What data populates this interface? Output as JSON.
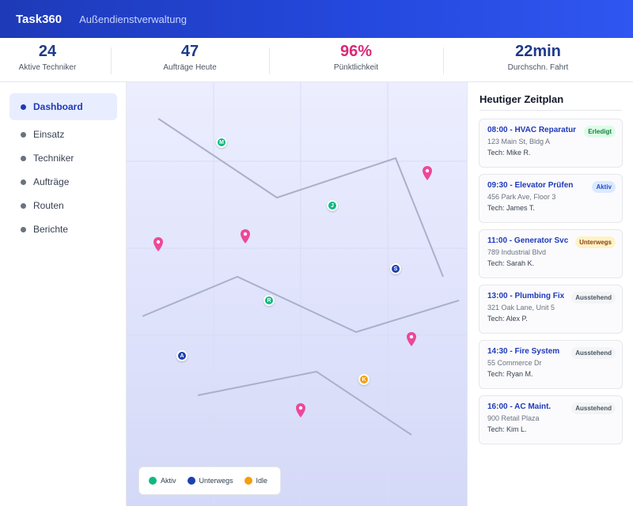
{
  "header": {
    "brand": "Task360",
    "subtitle": "Außendienstverwaltung"
  },
  "stats": [
    {
      "value": "24",
      "label": "Aktive Techniker"
    },
    {
      "value": "47",
      "label": "Aufträge Heute"
    },
    {
      "value": "96%",
      "label": "Pünktlichkeit"
    },
    {
      "value": "22min",
      "label": "Durchschn. Fahrt"
    }
  ],
  "sidebar": {
    "items": [
      {
        "label": "Dashboard",
        "active": true
      },
      {
        "label": "Einsatz"
      },
      {
        "label": "Techniker"
      },
      {
        "label": "Aufträge"
      },
      {
        "label": "Routen"
      },
      {
        "label": "Berichte"
      }
    ]
  },
  "map": {
    "markers": [
      {
        "letter": "M",
        "status": "active"
      },
      {
        "letter": "J",
        "status": "active"
      },
      {
        "letter": "S",
        "status": "transit"
      },
      {
        "letter": "R",
        "status": "active"
      },
      {
        "letter": "A",
        "status": "transit"
      },
      {
        "letter": "K",
        "status": "idle"
      }
    ],
    "legend": [
      {
        "label": "Aktiv",
        "color": "#10b981"
      },
      {
        "label": "Unterwegs",
        "color": "#1e40af"
      },
      {
        "label": "Idle",
        "color": "#f59e0b"
      }
    ],
    "pin_color": "#ec4899"
  },
  "schedule": {
    "title": "Heutiger Zeitplan",
    "jobs": [
      {
        "title": "08:00 - HVAC Reparatur",
        "address": "123 Main St, Bldg A",
        "tech": "Tech: Mike R.",
        "status": "Erledigt"
      },
      {
        "title": "09:30 - Elevator Prüfen",
        "address": "456 Park Ave, Floor 3",
        "tech": "Tech: James T.",
        "status": "Aktiv"
      },
      {
        "title": "11:00 - Generator Svc",
        "address": "789 Industrial Blvd",
        "tech": "Tech: Sarah K.",
        "status": "Unterwegs"
      },
      {
        "title": "13:00 - Plumbing Fix",
        "address": "321 Oak Lane, Unit 5",
        "tech": "Tech: Alex P.",
        "status": "Ausstehend"
      },
      {
        "title": "14:30 - Fire System",
        "address": "55 Commerce Dr",
        "tech": "Tech: Ryan M.",
        "status": "Ausstehend"
      },
      {
        "title": "16:00 - AC Maint.",
        "address": "900 Retail Plaza",
        "tech": "Tech: Kim L.",
        "status": "Ausstehend"
      }
    ]
  }
}
